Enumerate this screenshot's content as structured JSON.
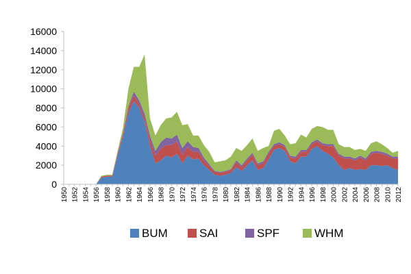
{
  "chart_data": {
    "type": "area",
    "stacked": true,
    "x": [
      1950,
      1951,
      1952,
      1953,
      1954,
      1955,
      1956,
      1957,
      1958,
      1959,
      1960,
      1961,
      1962,
      1963,
      1964,
      1965,
      1966,
      1967,
      1968,
      1969,
      1970,
      1971,
      1972,
      1973,
      1974,
      1975,
      1976,
      1977,
      1978,
      1979,
      1980,
      1981,
      1982,
      1983,
      1984,
      1985,
      1986,
      1987,
      1988,
      1989,
      1990,
      1991,
      1992,
      1993,
      1994,
      1995,
      1996,
      1997,
      1998,
      1999,
      2000,
      2001,
      2002,
      2003,
      2004,
      2005,
      2006,
      2007,
      2008,
      2009,
      2010,
      2011,
      2012
    ],
    "x_tick_labels": [
      "1950",
      "1952",
      "1954",
      "1956",
      "1958",
      "1960",
      "1962",
      "1964",
      "1966",
      "1968",
      "1970",
      "1972",
      "1974",
      "1976",
      "1978",
      "1980",
      "1982",
      "1984",
      "1986",
      "1988",
      "1990",
      "1992",
      "1994",
      "1996",
      "1998",
      "2000",
      "2002",
      "2004",
      "2006",
      "2008",
      "2010",
      "2012"
    ],
    "y_ticks": [
      0,
      2000,
      4000,
      6000,
      8000,
      10000,
      12000,
      14000,
      16000
    ],
    "y_tick_labels": [
      "0",
      "2000",
      "4000",
      "6000",
      "8000",
      "10000",
      "12000",
      "14000",
      "16000"
    ],
    "ylim": [
      0,
      16000
    ],
    "grid": false,
    "legend_position": "bottom",
    "series": [
      {
        "name": "BUM",
        "color": "#4F81BD",
        "values": [
          0,
          0,
          0,
          0,
          0,
          0,
          0,
          700,
          800,
          800,
          3000,
          5000,
          7500,
          8700,
          8000,
          6500,
          4000,
          2200,
          2500,
          3000,
          2800,
          3200,
          2200,
          3000,
          2600,
          2700,
          2000,
          1500,
          1000,
          900,
          1000,
          1200,
          1800,
          1400,
          2000,
          2500,
          1500,
          1700,
          2600,
          3600,
          3800,
          3500,
          2400,
          2200,
          2900,
          2900,
          3700,
          4000,
          3500,
          3200,
          2800,
          2000,
          1500,
          1700,
          1500,
          1600,
          1500,
          2000,
          2000,
          1900,
          2000,
          1700,
          1500
        ]
      },
      {
        "name": "SAI",
        "color": "#C0504D",
        "values": [
          0,
          0,
          0,
          0,
          0,
          0,
          0,
          100,
          100,
          100,
          200,
          300,
          500,
          600,
          400,
          400,
          600,
          800,
          1200,
          1100,
          1300,
          1300,
          900,
          900,
          800,
          700,
          500,
          400,
          300,
          300,
          300,
          300,
          500,
          400,
          500,
          600,
          500,
          500,
          600,
          400,
          400,
          400,
          400,
          500,
          500,
          500,
          500,
          500,
          600,
          800,
          1200,
          1000,
          1200,
          1000,
          1000,
          1200,
          1000,
          1200,
          1300,
          1300,
          1000,
          1000,
          1200
        ]
      },
      {
        "name": "SPF",
        "color": "#8064A2",
        "values": [
          0,
          0,
          0,
          0,
          0,
          0,
          0,
          0,
          0,
          0,
          100,
          100,
          200,
          400,
          400,
          500,
          500,
          500,
          700,
          800,
          700,
          700,
          700,
          600,
          500,
          400,
          300,
          200,
          100,
          100,
          100,
          100,
          200,
          200,
          200,
          200,
          200,
          200,
          200,
          200,
          200,
          200,
          200,
          200,
          200,
          200,
          200,
          200,
          200,
          200,
          200,
          200,
          200,
          200,
          200,
          200,
          200,
          200,
          200,
          200,
          200,
          200,
          200
        ]
      },
      {
        "name": "WHM",
        "color": "#9BBB59",
        "values": [
          0,
          0,
          0,
          0,
          0,
          0,
          0,
          100,
          100,
          100,
          200,
          500,
          1800,
          2600,
          3500,
          6200,
          1800,
          1600,
          1800,
          2000,
          2200,
          2400,
          2400,
          1800,
          1200,
          1300,
          1300,
          1300,
          900,
          1100,
          1100,
          1300,
          1300,
          1500,
          1400,
          1500,
          1300,
          1400,
          600,
          1400,
          1400,
          1000,
          1200,
          1400,
          1600,
          1300,
          1400,
          1400,
          1700,
          1500,
          1500,
          1000,
          1000,
          1000,
          900,
          700,
          800,
          900,
          1000,
          800,
          600,
          400,
          600
        ]
      }
    ]
  }
}
